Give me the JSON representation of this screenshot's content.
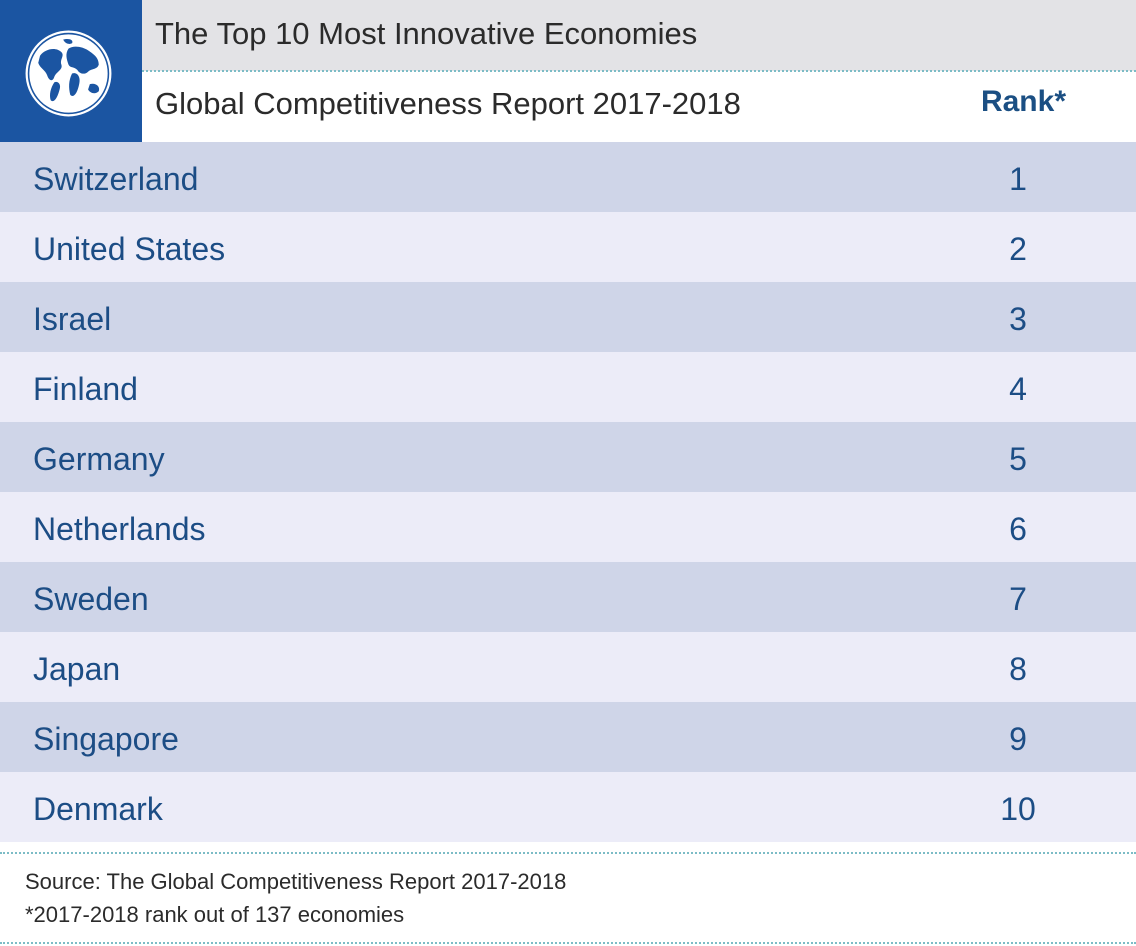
{
  "header": {
    "title": "The Top 10 Most Innovative Economies",
    "subtitle": "Global Competitiveness Report 2017-2018",
    "rank_label": "Rank*",
    "logo_icon": "globe-icon",
    "brand_color": "#1b55a2"
  },
  "rows": [
    {
      "country": "Switzerland",
      "rank": "1"
    },
    {
      "country": "United States",
      "rank": "2"
    },
    {
      "country": "Israel",
      "rank": "3"
    },
    {
      "country": "Finland",
      "rank": "4"
    },
    {
      "country": "Germany",
      "rank": "5"
    },
    {
      "country": "Netherlands",
      "rank": "6"
    },
    {
      "country": "Sweden",
      "rank": "7"
    },
    {
      "country": "Japan",
      "rank": "8"
    },
    {
      "country": "Singapore",
      "rank": "9"
    },
    {
      "country": "Denmark",
      "rank": "10"
    }
  ],
  "footer": {
    "source": "Source: The Global Competitiveness Report 2017-2018",
    "note": "*2017-2018 rank out of 137 economies"
  },
  "colors": {
    "row_odd": "#cfd5e8",
    "row_even": "#ececf8",
    "text_blue": "#1c4d85",
    "dotted_line": "#7cbcc6"
  }
}
